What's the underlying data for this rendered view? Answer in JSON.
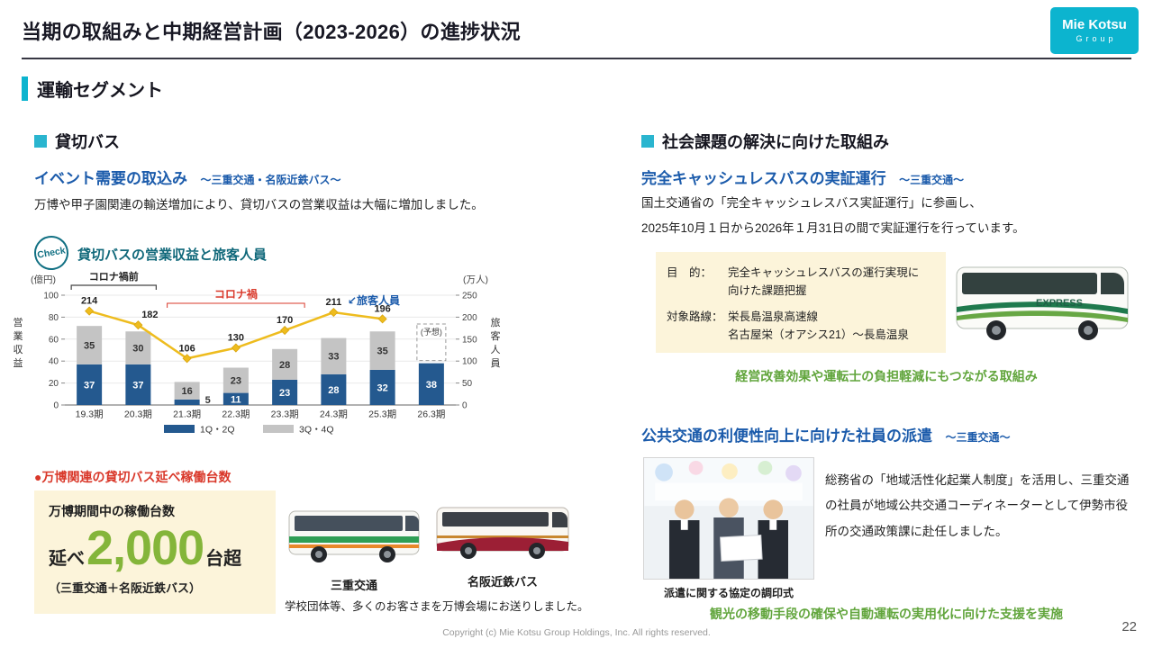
{
  "header": {
    "title": "当期の取組みと中期経営計画（2023-2026）の進捗状況",
    "logo_line1": "Mie Kotsu",
    "logo_line2": "Group"
  },
  "section_title": "運輸セグメント",
  "left": {
    "heading": "貸切バス",
    "check_badge": "Check",
    "event_demand": {
      "title": "イベント需要の取込み",
      "scope": "～三重交通・名阪近鉄バス～",
      "body": "万博や甲子園関連の輸送増加により、貸切バスの営業収益は大幅に増加しました。"
    },
    "expo_fleet": {
      "bullet": "●万博関連の貸切バス延べ稼働台数",
      "box_title": "万博期間中の稼働台数",
      "prefix": "延べ",
      "number": "2,000",
      "suffix": "台超",
      "note": "（三重交通＋名阪近鉄バス）",
      "bus1_label": "三重交通",
      "bus2_label": "名阪近鉄バス",
      "caption": "学校団体等、多くのお客さまを万博会場にお送りしました。"
    }
  },
  "chart_data": {
    "type": "bar",
    "subtype": "stacked-bar-with-line",
    "title": "貸切バスの営業収益と旅客人員",
    "categories": [
      "19.3期",
      "20.3期",
      "21.3期",
      "22.3期",
      "23.3期",
      "24.3期",
      "25.3期",
      "26.3期"
    ],
    "series": [
      {
        "name": "1Q・2Q",
        "type": "bar",
        "axis": "left",
        "color": "#24598f",
        "values": [
          37,
          37,
          5,
          11,
          23,
          28,
          32,
          38
        ]
      },
      {
        "name": "3Q・4Q",
        "type": "bar",
        "axis": "left",
        "color": "#c4c4c4",
        "values": [
          35,
          30,
          16,
          23,
          28,
          33,
          35,
          null
        ]
      },
      {
        "name": "旅客人員",
        "type": "line",
        "axis": "right",
        "color": "#eebc1e",
        "values": [
          214,
          182,
          106,
          130,
          170,
          211,
          196,
          null
        ]
      }
    ],
    "left_axis": {
      "label": "(億円)",
      "title": "営業収益",
      "ticks": [
        0,
        20,
        40,
        60,
        80,
        100
      ],
      "max": 100
    },
    "right_axis": {
      "label": "(万人)",
      "title": "旅客人員",
      "ticks": [
        0,
        50,
        100,
        150,
        200,
        250
      ],
      "max": 250
    },
    "annotations": {
      "pre_covid": "コロナ禍前",
      "covid": "コロナ禍",
      "line_label": "↙旅客人員",
      "forecast": "(予想)"
    },
    "legend": [
      "1Q・2Q",
      "3Q・4Q"
    ],
    "legend_position": "bottom",
    "grid": true
  },
  "right": {
    "heading": "社会課題の解決に向けた取組み",
    "cashless": {
      "title": "完全キャッシュレスバスの実証運行",
      "scope": "～三重交通～",
      "body_line1": "国土交通省の「完全キャッシュレスバス実証運行」に参画し、",
      "body_line2": "2025年10月１日から2026年１月31日の間で実証運行を行っています。",
      "purpose_label": "目　的：",
      "purpose_line1": "完全キャッシュレスバスの運行実現に",
      "purpose_line2": "向けた課題把握",
      "route_label": "対象路線：",
      "route_line1": "栄長島温泉高速線",
      "route_line2": "名古屋栄（オアシス21）～長島温泉",
      "bus_sign": "EXPRESS",
      "effect": "経営改善効果や運転士の負担軽減にもつながる取組み"
    },
    "dispatch": {
      "title": "公共交通の利便性向上に向けた社員の派遣",
      "scope": "～三重交通～",
      "photo_caption": "派遣に関する協定の調印式",
      "body": "総務省の「地域活性化起業人制度」を活用し、三重交通の社員が地域公共交通コーディネーターとして伊勢市役所の交通政策課に赴任しました。",
      "effect": "観光の移動手段の確保や自動運転の実用化に向けた支援を実施"
    }
  },
  "footer": {
    "copyright": "Copyright (c) Mie Kotsu Group Holdings, Inc. All rights reserved.",
    "page": "22"
  },
  "colors": {
    "accent_cyan": "#0cb4cf",
    "heading_blue": "#1b5bab",
    "alert_red": "#d9382a",
    "bar_navy": "#24598f",
    "bar_gray": "#c4c4c4",
    "line_gold": "#eebc1e",
    "effect_green": "#61a53c",
    "big_number_green": "#84b53a",
    "cream_box": "#fcf4da",
    "check_teal": "#117083"
  }
}
